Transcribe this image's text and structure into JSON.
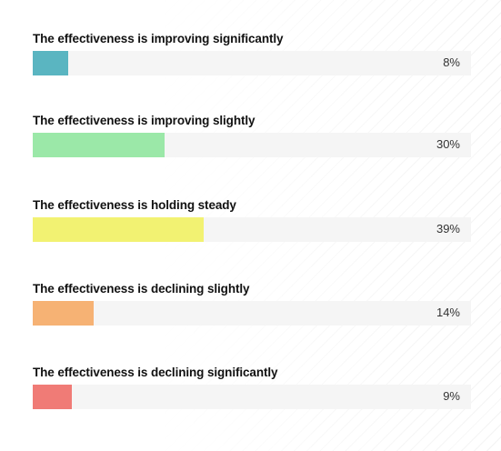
{
  "chart_data": {
    "type": "bar",
    "orientation": "horizontal",
    "categories": [
      "The effectiveness is improving significantly",
      "The effectiveness is improving slightly",
      "The effectiveness is holding steady",
      "The effectiveness is declining slightly",
      "The effectiveness is declining significantly"
    ],
    "values": [
      8,
      30,
      39,
      14,
      9
    ],
    "value_labels": [
      "8%",
      "30%",
      "39%",
      "14%",
      "9%"
    ],
    "colors": [
      "#5ab5c1",
      "#9be8a8",
      "#f2f272",
      "#f6b274",
      "#f07b76"
    ],
    "xlim": [
      0,
      100
    ],
    "grid": false
  }
}
